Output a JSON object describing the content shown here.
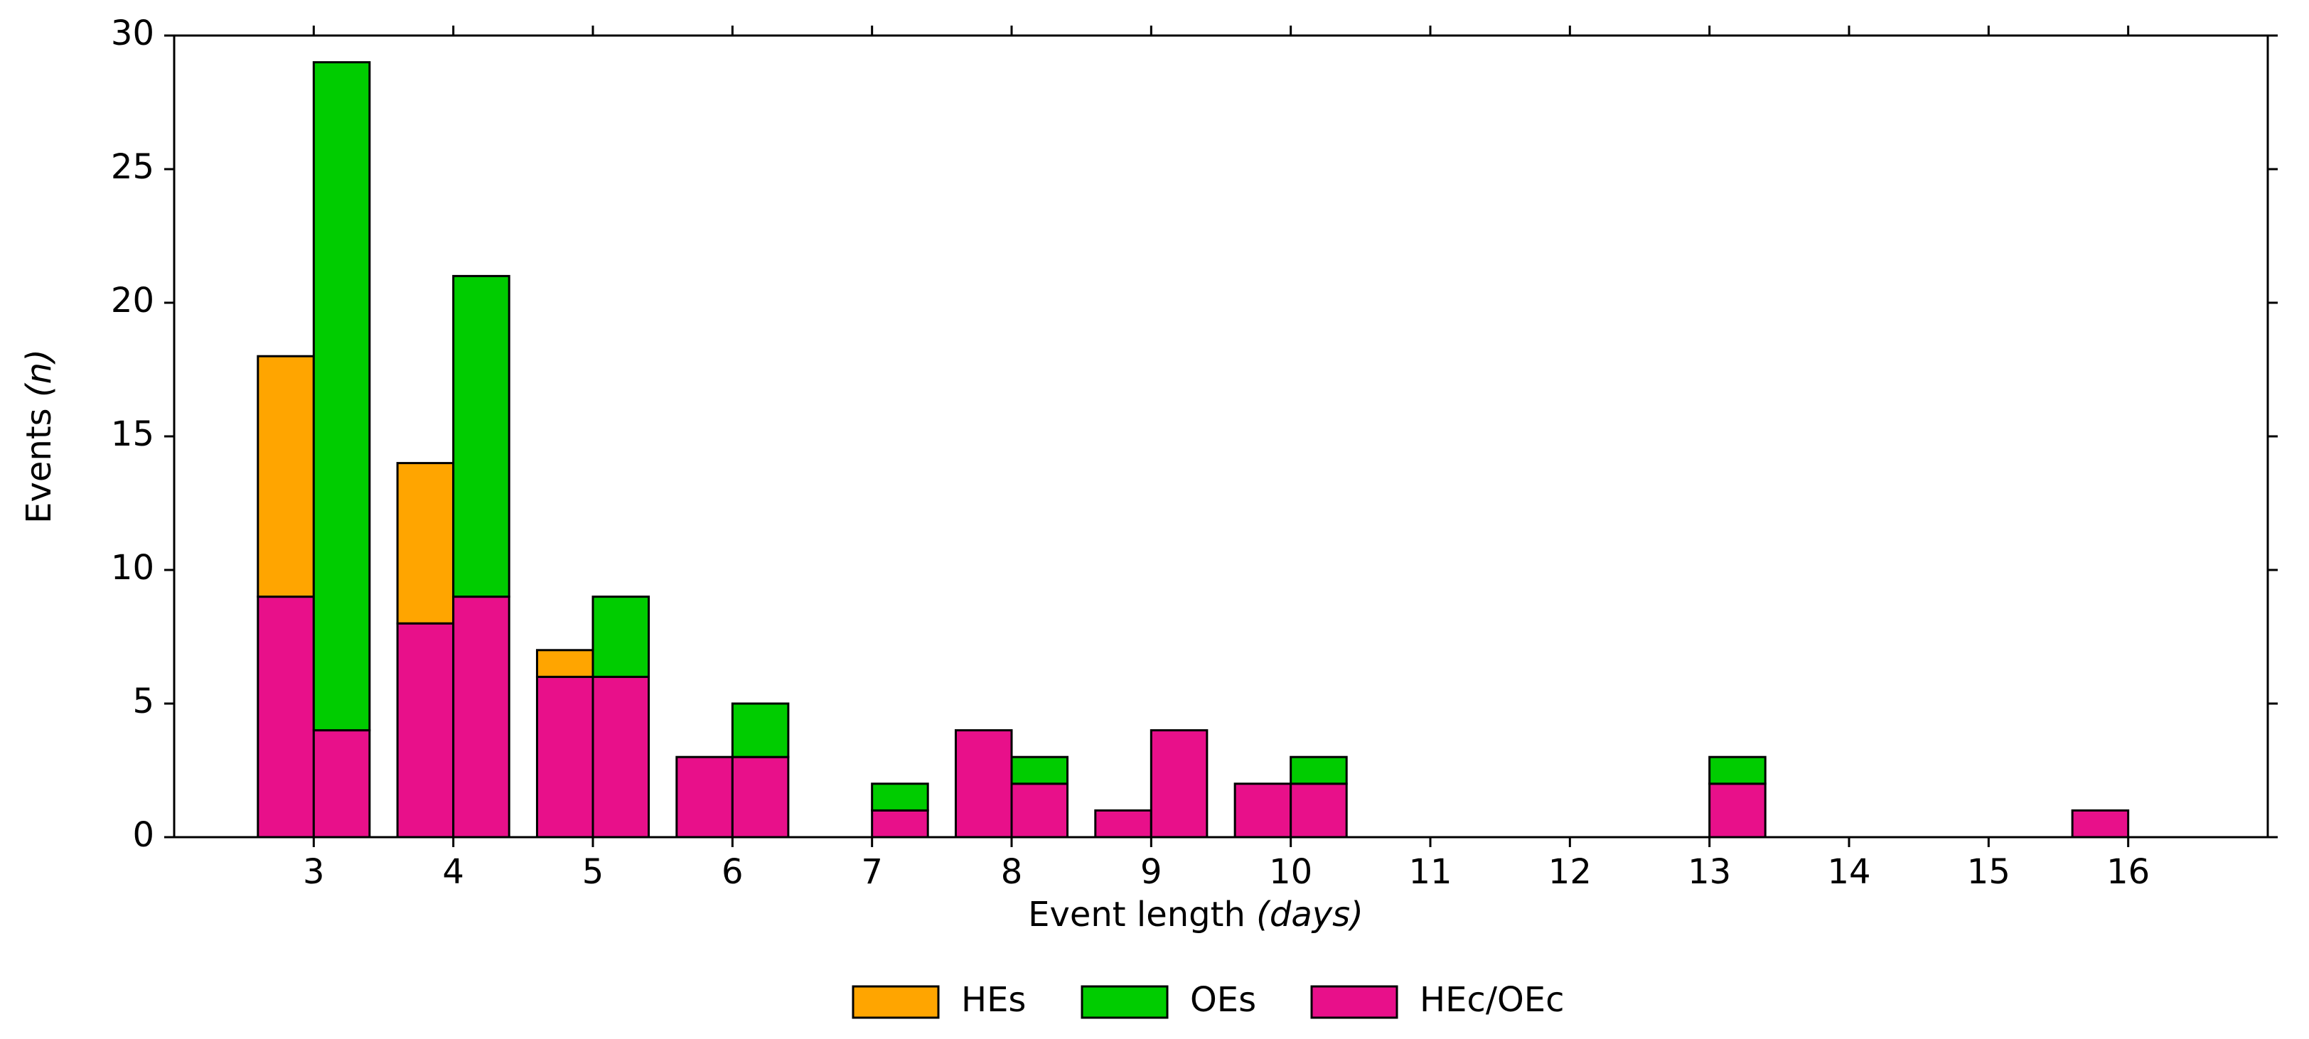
{
  "chart_data": {
    "type": "grouped-stacked-bar",
    "xlabel": "Event length",
    "xlabel_unit": "(days)",
    "ylabel": "Events",
    "ylabel_unit": "(n)",
    "categories": [
      3,
      4,
      5,
      6,
      7,
      8,
      9,
      10,
      11,
      12,
      13,
      14,
      15,
      16
    ],
    "series": [
      {
        "name": "HEs",
        "color": "#ffa500",
        "stack": "left",
        "values": [
          9,
          6,
          1,
          0,
          0,
          0,
          0,
          0,
          0,
          0,
          0,
          0,
          0,
          0
        ]
      },
      {
        "name": "OEs",
        "color": "#00cc00",
        "stack": "right",
        "values": [
          25,
          12,
          3,
          2,
          1,
          1,
          0,
          1,
          0,
          0,
          1,
          0,
          0,
          0
        ]
      },
      {
        "name": "HEc/OEc",
        "color": "#e8108a",
        "values_left": [
          9,
          8,
          6,
          3,
          0,
          4,
          1,
          2,
          0,
          0,
          0,
          0,
          0,
          1
        ],
        "values_right": [
          4,
          9,
          6,
          3,
          1,
          2,
          4,
          2,
          0,
          0,
          2,
          0,
          0,
          0
        ]
      }
    ],
    "xlim": [
      2,
      17
    ],
    "ylim": [
      0,
      30
    ],
    "yticks": [
      0,
      5,
      10,
      15,
      20,
      25,
      30
    ],
    "bar_width": 0.4,
    "legend": "bottom"
  }
}
